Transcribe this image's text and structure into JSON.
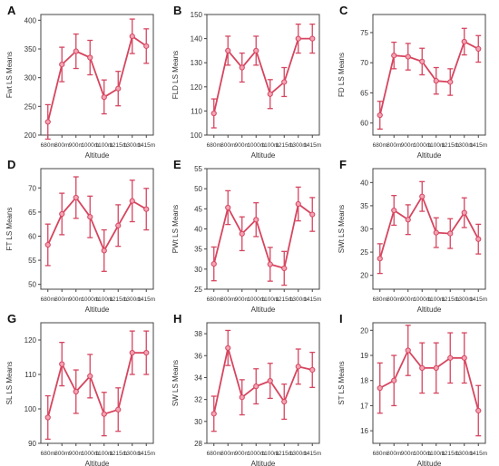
{
  "style": {
    "line_color": "#d6455f",
    "axis_color": "#444444",
    "text_color": "#333333"
  },
  "chart_data": [
    {
      "panel": "A",
      "type": "line",
      "xlabel": "Altitude",
      "ylabel": "Fwt LS Means",
      "categories": [
        "680m",
        "800m",
        "900m",
        "1000m",
        "1100m",
        "1215m",
        "1300m",
        "1415m"
      ],
      "ylim": [
        200,
        410
      ],
      "yticks": [
        200,
        250,
        300,
        350,
        400
      ],
      "values": [
        223,
        323,
        346,
        335,
        266,
        281,
        372,
        355
      ],
      "err_low": [
        193,
        293,
        316,
        305,
        237,
        251,
        342,
        325
      ],
      "err_high": [
        253,
        353,
        376,
        365,
        296,
        311,
        402,
        385
      ]
    },
    {
      "panel": "B",
      "type": "line",
      "xlabel": "Altitude",
      "ylabel": "FLD LS Means",
      "categories": [
        "680m",
        "800m",
        "900m",
        "1000m",
        "1100m",
        "1215m",
        "1300m",
        "1415m"
      ],
      "ylim": [
        100,
        150
      ],
      "yticks": [
        100,
        110,
        120,
        130,
        140,
        150
      ],
      "values": [
        109,
        135,
        128,
        135,
        117,
        122,
        140,
        140
      ],
      "err_low": [
        103,
        129,
        122,
        129,
        111,
        116,
        134,
        134
      ],
      "err_high": [
        115,
        141,
        134,
        141,
        123,
        128,
        146,
        146
      ]
    },
    {
      "panel": "C",
      "type": "line",
      "xlabel": "Altitude",
      "ylabel": "FD LS Means",
      "categories": [
        "680m",
        "800m",
        "900m",
        "1000m",
        "1100m",
        "1215m",
        "1300m",
        "1415m"
      ],
      "ylim": [
        58,
        78
      ],
      "yticks": [
        60,
        65,
        70,
        75
      ],
      "values": [
        61.3,
        71.2,
        71.0,
        70.2,
        67.0,
        66.8,
        73.5,
        72.3
      ],
      "err_low": [
        59.0,
        69.0,
        68.8,
        68.0,
        64.8,
        64.6,
        71.3,
        70.1
      ],
      "err_high": [
        63.6,
        73.4,
        73.2,
        72.4,
        69.2,
        69.0,
        75.7,
        74.5
      ]
    },
    {
      "panel": "D",
      "type": "line",
      "xlabel": "Altitude",
      "ylabel": "FT LS Means",
      "categories": [
        "680m",
        "800m",
        "900m",
        "1000m",
        "1100m",
        "1215m",
        "1300m",
        "1415m"
      ],
      "ylim": [
        49,
        74
      ],
      "yticks": [
        50,
        55,
        60,
        65,
        70
      ],
      "values": [
        58.2,
        64.6,
        68.0,
        64.0,
        57.0,
        62.2,
        67.3,
        65.6
      ],
      "err_low": [
        53.9,
        60.3,
        63.7,
        59.7,
        52.7,
        57.9,
        63.0,
        61.3
      ],
      "err_high": [
        62.5,
        68.9,
        72.3,
        68.3,
        61.3,
        66.5,
        71.6,
        69.9
      ]
    },
    {
      "panel": "E",
      "type": "line",
      "xlabel": "Altitude",
      "ylabel": "PWt LS Means",
      "categories": [
        "680m",
        "800m",
        "900m",
        "1000m",
        "1100m",
        "1215m",
        "1300m",
        "1415m"
      ],
      "ylim": [
        25,
        55
      ],
      "yticks": [
        25,
        30,
        35,
        40,
        45,
        50,
        55
      ],
      "values": [
        31.3,
        45.3,
        38.8,
        42.3,
        31.2,
        30.2,
        46.2,
        43.6
      ],
      "err_low": [
        27.1,
        41.1,
        34.6,
        38.1,
        27.0,
        26.0,
        42.0,
        39.4
      ],
      "err_high": [
        35.5,
        49.5,
        43.0,
        46.5,
        35.4,
        34.4,
        50.4,
        47.8
      ]
    },
    {
      "panel": "F",
      "type": "line",
      "xlabel": "Altitude",
      "ylabel": "SWt LS Means",
      "categories": [
        "680m",
        "800m",
        "900m",
        "1000m",
        "1100m",
        "1215m",
        "1300m",
        "1415m"
      ],
      "ylim": [
        17,
        43
      ],
      "yticks": [
        20,
        25,
        30,
        35,
        40
      ],
      "values": [
        23.6,
        34.0,
        32.0,
        37.0,
        29.2,
        29.0,
        33.5,
        27.8
      ],
      "err_low": [
        20.4,
        30.8,
        28.8,
        33.8,
        26.0,
        25.8,
        30.3,
        24.6
      ],
      "err_high": [
        26.8,
        37.2,
        35.2,
        40.2,
        32.4,
        32.2,
        36.7,
        31.0
      ]
    },
    {
      "panel": "G",
      "type": "line",
      "xlabel": "Altitude",
      "ylabel": "SL LS Means",
      "categories": [
        "680m",
        "800m",
        "900m",
        "1000m",
        "1100m",
        "1215m",
        "1300m",
        "1415m"
      ],
      "ylim": [
        90,
        125
      ],
      "yticks": [
        90,
        100,
        110,
        120
      ],
      "values": [
        97.5,
        113.0,
        105.0,
        109.5,
        98.5,
        99.8,
        116.3,
        116.3
      ],
      "err_low": [
        91.2,
        106.7,
        98.7,
        103.2,
        92.2,
        93.5,
        110.0,
        110.0
      ],
      "err_high": [
        103.8,
        119.3,
        111.3,
        115.8,
        104.8,
        106.1,
        122.6,
        122.6
      ]
    },
    {
      "panel": "H",
      "type": "line",
      "xlabel": "Altitude",
      "ylabel": "SW LS Means",
      "categories": [
        "680m",
        "800m",
        "900m",
        "1000m",
        "1100m",
        "1215m",
        "1300m",
        "1415m"
      ],
      "ylim": [
        28,
        39
      ],
      "yticks": [
        28,
        30,
        32,
        34,
        36,
        38
      ],
      "values": [
        30.7,
        36.7,
        32.2,
        33.2,
        33.7,
        31.8,
        35.0,
        34.7
      ],
      "err_low": [
        29.1,
        35.1,
        30.6,
        31.6,
        32.1,
        30.2,
        33.4,
        33.1
      ],
      "err_high": [
        32.3,
        38.3,
        33.8,
        34.8,
        35.3,
        33.4,
        36.6,
        36.3
      ]
    },
    {
      "panel": "I",
      "type": "line",
      "xlabel": "Altitude",
      "ylabel": "ST LS Means",
      "categories": [
        "680m",
        "800m",
        "900m",
        "1000m",
        "1100m",
        "1215m",
        "1300m",
        "1415m"
      ],
      "ylim": [
        15.5,
        20.3
      ],
      "yticks": [
        16,
        17,
        18,
        19,
        20
      ],
      "values": [
        17.7,
        18.0,
        19.2,
        18.5,
        18.5,
        18.9,
        18.9,
        16.8
      ],
      "err_low": [
        16.7,
        17.0,
        18.2,
        17.5,
        17.5,
        17.9,
        17.9,
        15.8
      ],
      "err_high": [
        18.7,
        19.0,
        20.2,
        19.5,
        19.5,
        19.9,
        19.9,
        17.8
      ]
    }
  ]
}
